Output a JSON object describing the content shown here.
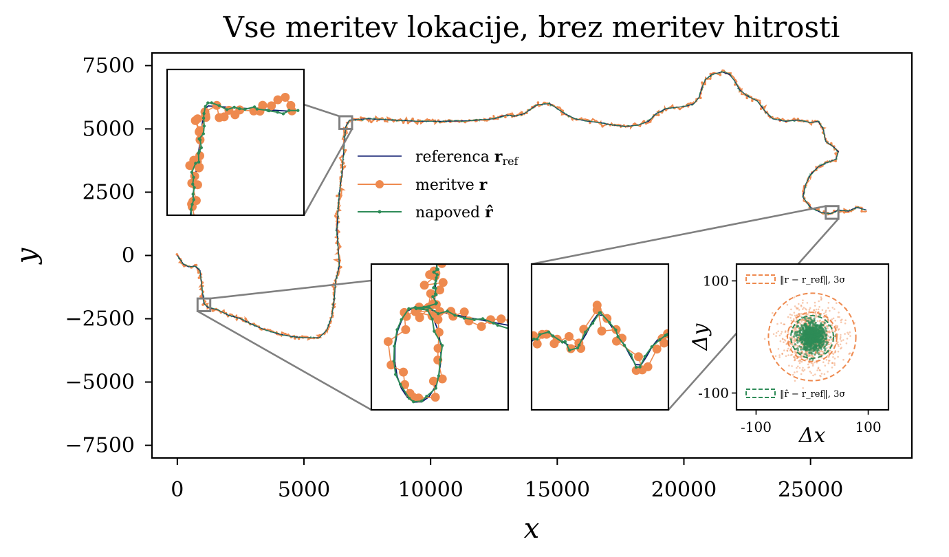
{
  "chart_data": {
    "type": "line",
    "title": "Vse meritev lokacije, brez meritev hitrosti",
    "xlabel": "x",
    "ylabel": "y",
    "xlim": [
      -1000,
      29000
    ],
    "ylim": [
      -8000,
      8000
    ],
    "xticks": [
      0,
      5000,
      10000,
      15000,
      20000,
      25000
    ],
    "xtick_labels": [
      "0",
      "5000",
      "10000",
      "15000",
      "20000",
      "25000"
    ],
    "yticks": [
      7500,
      5000,
      2500,
      0,
      -2500,
      -5000,
      -7500
    ],
    "ytick_labels": [
      "7500",
      "5000",
      "2500",
      "0",
      "−2500",
      "−5000",
      "−7500"
    ],
    "grid": false,
    "legend_position": "center-left",
    "series": [
      {
        "name": "referenca r_ref",
        "legend_main": "referenca ",
        "legend_bold": "r",
        "legend_sub": "ref",
        "color": "#0b1a6e",
        "style": "line"
      },
      {
        "name": "meritve r",
        "legend_main": "meritve ",
        "legend_bold": "r",
        "legend_sub": "",
        "color": "#ee8a4f",
        "style": "line-marker"
      },
      {
        "name": "napoved r̂",
        "legend_main": "napoved ",
        "legend_bold": "r̂",
        "legend_sub": "",
        "color": "#2e8b57",
        "style": "line-dot"
      }
    ],
    "path": [
      [
        0,
        0
      ],
      [
        250,
        -350
      ],
      [
        450,
        -450
      ],
      [
        700,
        -420
      ],
      [
        900,
        -600
      ],
      [
        950,
        -1100
      ],
      [
        1000,
        -1500
      ],
      [
        1050,
        -1900
      ],
      [
        1200,
        -2050
      ],
      [
        1600,
        -2150
      ],
      [
        2000,
        -2350
      ],
      [
        2500,
        -2500
      ],
      [
        3000,
        -2750
      ],
      [
        3500,
        -2950
      ],
      [
        4000,
        -3100
      ],
      [
        4500,
        -3200
      ],
      [
        5000,
        -3250
      ],
      [
        5600,
        -3250
      ],
      [
        5900,
        -2950
      ],
      [
        6100,
        -2400
      ],
      [
        6200,
        -1700
      ],
      [
        6250,
        -1000
      ],
      [
        6400,
        -400
      ],
      [
        6350,
        300
      ],
      [
        6300,
        1000
      ],
      [
        6350,
        1800
      ],
      [
        6400,
        2500
      ],
      [
        6500,
        3200
      ],
      [
        6550,
        3900
      ],
      [
        6600,
        4500
      ],
      [
        6650,
        5100
      ],
      [
        6800,
        5350
      ],
      [
        7500,
        5400
      ],
      [
        8500,
        5350
      ],
      [
        9500,
        5300
      ],
      [
        10500,
        5300
      ],
      [
        11500,
        5320
      ],
      [
        12500,
        5400
      ],
      [
        13000,
        5550
      ],
      [
        13300,
        5500
      ],
      [
        13700,
        5600
      ],
      [
        14200,
        5950
      ],
      [
        14700,
        6000
      ],
      [
        15000,
        5800
      ],
      [
        15300,
        5600
      ],
      [
        15700,
        5400
      ],
      [
        16200,
        5300
      ],
      [
        16700,
        5250
      ],
      [
        17200,
        5150
      ],
      [
        17700,
        5100
      ],
      [
        18200,
        5150
      ],
      [
        18600,
        5300
      ],
      [
        18900,
        5600
      ],
      [
        19300,
        5800
      ],
      [
        19700,
        5850
      ],
      [
        20100,
        5900
      ],
      [
        20400,
        6000
      ],
      [
        20600,
        6250
      ],
      [
        20700,
        6600
      ],
      [
        20850,
        6950
      ],
      [
        21100,
        7150
      ],
      [
        21500,
        7250
      ],
      [
        21800,
        7150
      ],
      [
        22000,
        6900
      ],
      [
        22200,
        6550
      ],
      [
        22500,
        6300
      ],
      [
        22900,
        6100
      ],
      [
        23200,
        5700
      ],
      [
        23500,
        5400
      ],
      [
        24000,
        5300
      ],
      [
        24500,
        5350
      ],
      [
        25000,
        5250
      ],
      [
        25300,
        5300
      ],
      [
        25500,
        5000
      ],
      [
        25600,
        4500
      ],
      [
        25900,
        4300
      ],
      [
        26100,
        4100
      ],
      [
        26000,
        3800
      ],
      [
        25600,
        3650
      ],
      [
        25300,
        3500
      ],
      [
        25000,
        3200
      ],
      [
        24800,
        2800
      ],
      [
        24700,
        2300
      ],
      [
        25000,
        1900
      ],
      [
        25400,
        1700
      ],
      [
        25800,
        1650
      ],
      [
        26100,
        1800
      ],
      [
        26500,
        1750
      ],
      [
        26800,
        1900
      ],
      [
        27200,
        1800
      ]
    ],
    "zoom_regions": [
      {
        "x": [
          800,
          1300
        ],
        "y": [
          -2200,
          -1700
        ]
      },
      {
        "x": [
          6400,
          6900
        ],
        "y": [
          5000,
          5500
        ]
      },
      {
        "x": [
          25600,
          26100
        ],
        "y": [
          1450,
          1950
        ]
      }
    ],
    "residual_inset": {
      "xlabel": "Δx",
      "ylabel": "Δy",
      "xticks": [
        -100,
        100
      ],
      "xtick_labels": [
        "-100",
        "100"
      ],
      "yticks": [
        100,
        -100
      ],
      "ytick_labels": [
        "100",
        "-100"
      ],
      "lim": [
        -130,
        130
      ],
      "legend_top": {
        "text": "‖r − r_ref‖, 3σ",
        "color": "#ee8a4f"
      },
      "legend_bottom": {
        "text": "‖r̂ − r_ref‖, 3σ",
        "color": "#2e8b57"
      },
      "circles": [
        {
          "series": "meritve",
          "radius": 78,
          "color": "#ee8a4f"
        },
        {
          "series": "meritve",
          "radius": 44,
          "color": "#ee8a4f"
        },
        {
          "series": "napoved",
          "radius": 38,
          "color": "#2e8b57"
        }
      ]
    }
  }
}
